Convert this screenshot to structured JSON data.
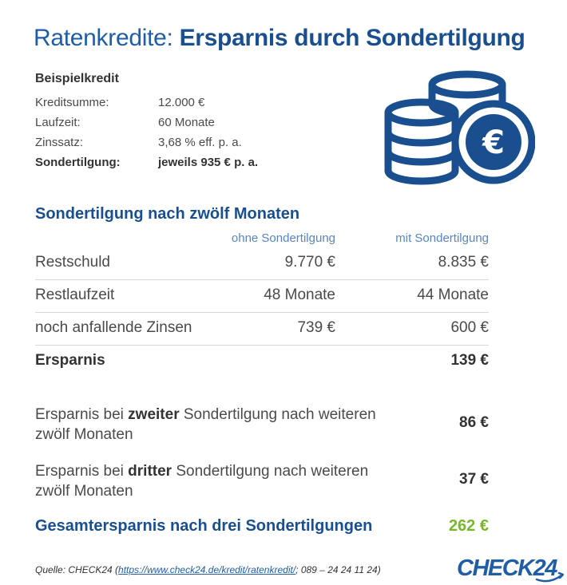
{
  "title": {
    "light": "Ratenkredite: ",
    "bold": "Ersparnis durch Sondertilgung"
  },
  "example": {
    "heading": "Beispielkredit",
    "rows": [
      {
        "key": "Kreditsumme:",
        "value": "12.000 €"
      },
      {
        "key": "Laufzeit:",
        "value": "60 Monate"
      },
      {
        "key": "Zinssatz:",
        "value": "3,68 % eff. p. a."
      },
      {
        "key": "Sondertilgung:",
        "value": "jeweils 935 € p. a."
      }
    ]
  },
  "icon": {
    "name": "coins-euro-icon",
    "symbol": "€",
    "color": "#1a4f8f"
  },
  "comparison": {
    "heading": "Sondertilgung nach zwölf Monaten",
    "col_without": "ohne Sondertilgung",
    "col_with": "mit Sondertilgung",
    "rows": [
      {
        "label": "Restschuld",
        "without": "9.770 €",
        "with": "8.835 €"
      },
      {
        "label": "Restlaufzeit",
        "without": "48 Monate",
        "with": "44 Monate"
      },
      {
        "label": "noch anfallende Zinsen",
        "without": "739 €",
        "with": "600 €"
      }
    ],
    "total_label": "Ersparnis",
    "total_value": "139 €"
  },
  "further_savings": [
    {
      "prefix": "Ersparnis bei ",
      "bold": "zweiter",
      "suffix": " Sondertilgung nach weiteren zwölf Monaten",
      "amount": "86 €"
    },
    {
      "prefix": "Ersparnis bei ",
      "bold": "dritter",
      "suffix": " Sondertilgung nach weiteren zwölf Monaten",
      "amount": "37 €"
    }
  ],
  "grand_total": {
    "label": "Gesamtersparnis nach drei Sondertilgungen",
    "amount": "262 €"
  },
  "source": {
    "prefix": "Quelle: CHECK24 (",
    "link": "https://www.check24.de/kredit/ratenkredit/",
    "suffix": "; 089 – 24 24 11 24)"
  },
  "brand": {
    "logo_text": "CHECK24",
    "primary_color": "#1f5da4",
    "accent_color": "#76b82a"
  }
}
